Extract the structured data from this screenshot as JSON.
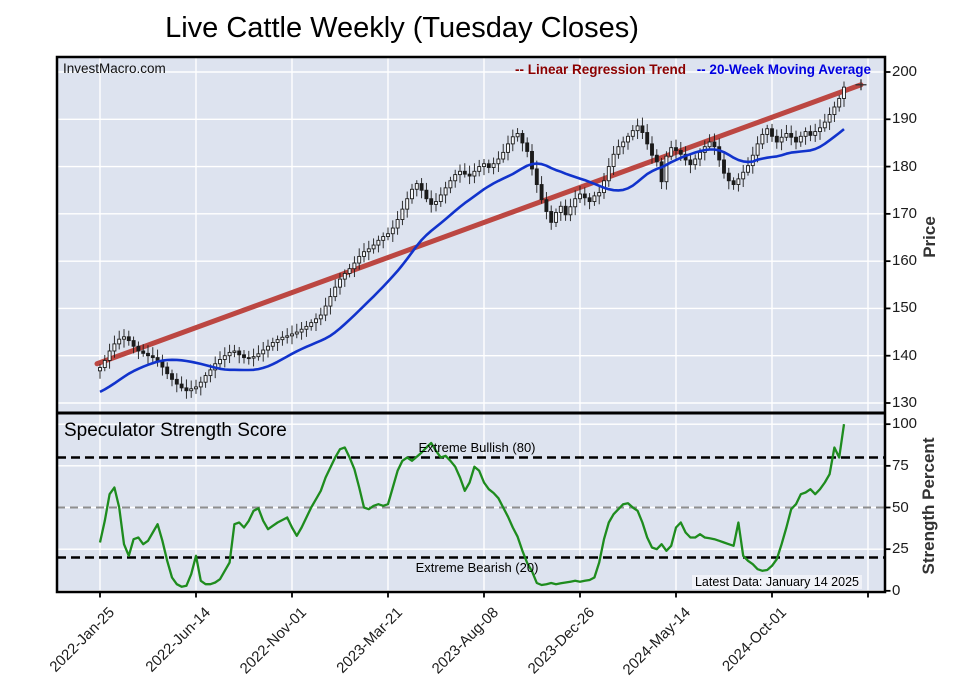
{
  "title": "Live Cattle Weekly (Tuesday Closes)",
  "watermark": "InvestMacro.com",
  "legend": {
    "trend_label": "-- Linear Regression Trend",
    "ma_label": "-- 20-Week Moving Average",
    "trend_text_color": "#8b0000",
    "ma_text_color": "#0000e0"
  },
  "price_axis": {
    "label": "Price",
    "ticks": [
      200,
      190,
      180,
      170,
      160,
      150,
      140,
      130
    ]
  },
  "strength_axis": {
    "label": "Strength Percent",
    "ticks": [
      100,
      75,
      50,
      25,
      0
    ]
  },
  "x_axis": {
    "tick_labels": [
      "2022-Jan-25",
      "2022-Jun-14",
      "2022-Nov-01",
      "2023-Mar-21",
      "2023-Aug-08",
      "2023-Dec-26",
      "2024-May-14",
      "2024-Oct-01"
    ],
    "tick_week_indices": [
      0,
      20,
      40,
      60,
      80,
      100,
      120,
      140
    ]
  },
  "panel2": {
    "title": "Speculator Strength Score",
    "bullish_label": "Extreme Bullish (80)",
    "bearish_label": "Extreme Bearish (20)",
    "latest_label": "Latest Data: January 14 2025"
  },
  "colors": {
    "plot_bg": "#dde3ef",
    "grid": "#ffffff",
    "trend_line": "#bc4742",
    "ma_line": "#1133cc",
    "strength_line": "#1e8c1e",
    "candle": "#1b1b1b",
    "candle_up_fill": "#f7f9fc",
    "threshold": "#000000",
    "mid_threshold": "#8f8f8f",
    "border": "#000000"
  },
  "chart_data": [
    {
      "type": "candlestick",
      "name": "Live Cattle weekly Tuesday closes with 20-week moving average and linear regression trend",
      "weeks": 156,
      "x_start_label": "2022-Jan-25",
      "x_end_label": "2025-Jan-14",
      "ylim": [
        128,
        203
      ],
      "ylabel": "Price",
      "closes": [
        137.5,
        139,
        141,
        142.5,
        143.5,
        144,
        143.2,
        142,
        141,
        140.5,
        140,
        139.6,
        138.8,
        137.6,
        136.2,
        135,
        134,
        133.2,
        132.6,
        133,
        133.4,
        134.4,
        135.8,
        137,
        138.3,
        139.2,
        140,
        140.7,
        141,
        140.2,
        139.6,
        139.5,
        139.8,
        140.4,
        141.2,
        142,
        142.8,
        143.4,
        143.9,
        144.2,
        144.6,
        145,
        145.6,
        146.2,
        147,
        147.8,
        148.6,
        150.5,
        152.5,
        154.5,
        156.2,
        157.4,
        158.4,
        159.6,
        161,
        162,
        162.6,
        163.4,
        164.4,
        165.2,
        165.8,
        167,
        168.8,
        171,
        173.2,
        175.2,
        176.4,
        175,
        173.2,
        172,
        172.6,
        174,
        175.5,
        177,
        178.3,
        179,
        178.4,
        178,
        179,
        180,
        180.6,
        179.8,
        180.6,
        181.6,
        183,
        184.8,
        186.3,
        187,
        185,
        183.2,
        179.5,
        176.2,
        173,
        170.5,
        168.2,
        170.3,
        171.6,
        169.8,
        171.5,
        173.2,
        174.2,
        173.4,
        172.6,
        173.8,
        174.5,
        177,
        180,
        182.6,
        184.2,
        185.2,
        186.4,
        187.6,
        188.6,
        187.2,
        184.8,
        182.4,
        181,
        176.8,
        182.2,
        184,
        183.4,
        182.6,
        181.4,
        180.4,
        181.6,
        183,
        184.2,
        185.2,
        184.2,
        181.4,
        178.6,
        177,
        176.2,
        177.4,
        178.8,
        180.2,
        182.4,
        184.8,
        186.8,
        188,
        186.4,
        185.2,
        186.2,
        187,
        186.2,
        185.2,
        186.4,
        187.4,
        186.6,
        187.4,
        188.2,
        189.4,
        191,
        192.6,
        194.4,
        196.8
      ],
      "ma20_warmup": [
        128.5,
        128.8,
        129.2,
        129.6,
        130,
        130.4,
        130.8,
        131.2,
        131.6,
        132,
        132.4,
        132.8,
        133.2,
        133.6,
        134,
        134.5,
        135,
        135.6,
        136.4
      ],
      "trend": {
        "start_price": 138.3,
        "end_price": 197.3
      }
    },
    {
      "type": "line",
      "name": "Speculator Strength Score",
      "ylim": [
        0,
        106
      ],
      "ylabel": "Strength Percent",
      "bullish_level": 80,
      "bearish_level": 20,
      "mid_level": 50,
      "values": [
        29,
        42,
        58,
        62,
        50,
        28,
        21,
        31,
        32,
        28,
        30,
        35,
        40,
        30,
        18,
        8,
        4,
        2.5,
        3,
        10,
        21,
        6,
        4,
        4,
        5,
        7,
        12,
        17,
        40,
        41,
        38,
        42,
        48,
        49.5,
        42,
        37,
        39,
        41,
        42.5,
        44,
        38,
        33,
        38,
        44,
        50,
        55,
        60,
        68,
        74,
        80,
        85,
        86,
        80,
        73,
        62,
        50,
        49,
        51,
        52,
        51,
        52,
        62,
        72,
        78,
        80,
        78,
        80.5,
        83,
        86,
        88.7,
        84,
        80,
        81,
        78,
        74.5,
        68,
        60,
        65,
        74.5,
        72,
        65,
        61,
        58.7,
        55.6,
        50,
        44.5,
        38,
        32.5,
        24,
        16.7,
        11.7,
        4.7,
        3.5,
        4,
        4.7,
        4,
        4.5,
        5,
        5.5,
        6,
        5.5,
        6,
        6.5,
        8,
        17,
        31,
        41,
        46,
        49,
        52,
        52.5,
        50,
        48,
        41,
        32,
        26,
        25,
        28,
        24,
        27,
        38,
        41,
        35,
        32,
        32,
        34,
        32,
        31.5,
        31,
        30,
        29,
        28,
        27,
        41,
        21,
        18,
        16,
        13,
        12,
        12.5,
        15,
        19,
        28,
        38,
        49,
        52,
        58,
        59,
        61,
        58,
        61,
        65,
        70,
        86,
        80,
        100
      ]
    }
  ]
}
